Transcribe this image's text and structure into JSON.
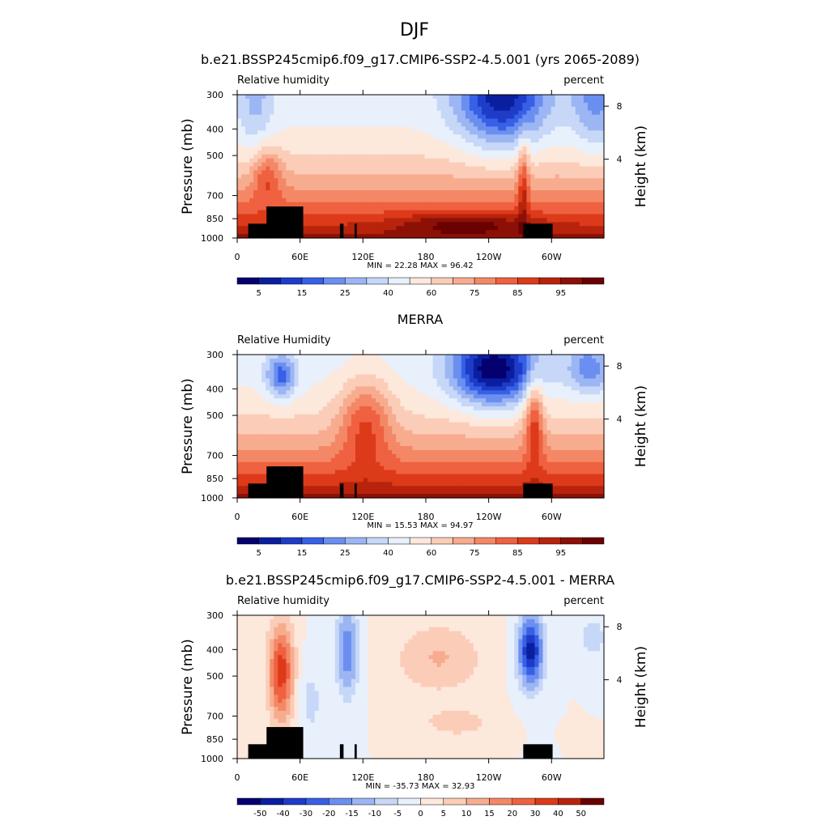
{
  "figure": {
    "title": "DJF"
  },
  "chart_data": [
    {
      "type": "contour",
      "title": "b.e21.BSSP245cmip6.f09_g17.CMIP6-SSP2-4.5.001 (yrs 2065-2089)",
      "left_label": "Relative humidity",
      "right_label": "percent",
      "ylabel": "Pressure (mb)",
      "ylabel_right": "Height (km)",
      "x_ticks": [
        "0",
        "60E",
        "120E",
        "180",
        "120W",
        "60W"
      ],
      "y_ticks": [
        "300",
        "400",
        "500",
        "700",
        "850",
        "1000"
      ],
      "y_ticks_right": [
        "8",
        "4"
      ],
      "stats": "MIN =  22.28  MAX =  96.42",
      "min": 22.28,
      "max": 96.42,
      "colorbar_labels": [
        "5",
        "15",
        "25",
        "40",
        "60",
        "75",
        "85",
        "95"
      ],
      "colorbar_colors": [
        "#04006f",
        "#0a1ea0",
        "#1e3cc8",
        "#3760e6",
        "#6b8ff0",
        "#9cb6f4",
        "#c6d7f8",
        "#e8f0fc",
        "#fde8dc",
        "#fbcdb8",
        "#f8ac8f",
        "#f48866",
        "#ef6140",
        "#dd3a1a",
        "#b8230c",
        "#8c1006",
        "#6b0000"
      ],
      "diverging": false
    },
    {
      "type": "contour",
      "title": "MERRA",
      "left_label": "Relative Humidity",
      "right_label": "percent",
      "ylabel": "Pressure (mb)",
      "ylabel_right": "Height (km)",
      "x_ticks": [
        "0",
        "60E",
        "120E",
        "180",
        "120W",
        "60W"
      ],
      "y_ticks": [
        "300",
        "400",
        "500",
        "700",
        "850",
        "1000"
      ],
      "y_ticks_right": [
        "8",
        "4"
      ],
      "stats": "MIN =  15.53  MAX =  94.97",
      "min": 15.53,
      "max": 94.97,
      "colorbar_labels": [
        "5",
        "15",
        "25",
        "40",
        "60",
        "75",
        "85",
        "95"
      ],
      "colorbar_colors": [
        "#04006f",
        "#0a1ea0",
        "#1e3cc8",
        "#3760e6",
        "#6b8ff0",
        "#9cb6f4",
        "#c6d7f8",
        "#e8f0fc",
        "#fde8dc",
        "#fbcdb8",
        "#f8ac8f",
        "#f48866",
        "#ef6140",
        "#dd3a1a",
        "#b8230c",
        "#8c1006",
        "#6b0000"
      ],
      "diverging": false
    },
    {
      "type": "contour",
      "title": "b.e21.BSSP245cmip6.f09_g17.CMIP6-SSP2-4.5.001 - MERRA",
      "left_label": "Relative humidity",
      "right_label": "percent",
      "ylabel": "Pressure (mb)",
      "ylabel_right": "Height (km)",
      "x_ticks": [
        "0",
        "60E",
        "120E",
        "180",
        "120W",
        "60W"
      ],
      "y_ticks": [
        "300",
        "400",
        "500",
        "700",
        "850",
        "1000"
      ],
      "y_ticks_right": [
        "8",
        "4"
      ],
      "stats": "MIN = -35.73  MAX =  32.93",
      "min": -35.73,
      "max": 32.93,
      "colorbar_labels": [
        "-50",
        "-40",
        "-30",
        "-20",
        "-15",
        "-10",
        "-5",
        "0",
        "5",
        "10",
        "15",
        "20",
        "30",
        "40",
        "50"
      ],
      "colorbar_colors": [
        "#04006f",
        "#0a1ea0",
        "#1e3cc8",
        "#3760e6",
        "#6b8ff0",
        "#9cb6f4",
        "#c6d7f8",
        "#e8f0fc",
        "#fde8dc",
        "#fbcdb8",
        "#f8ac8f",
        "#f48866",
        "#ef6140",
        "#dd3a1a",
        "#b8230c",
        "#6b0000"
      ],
      "diverging": true
    }
  ]
}
